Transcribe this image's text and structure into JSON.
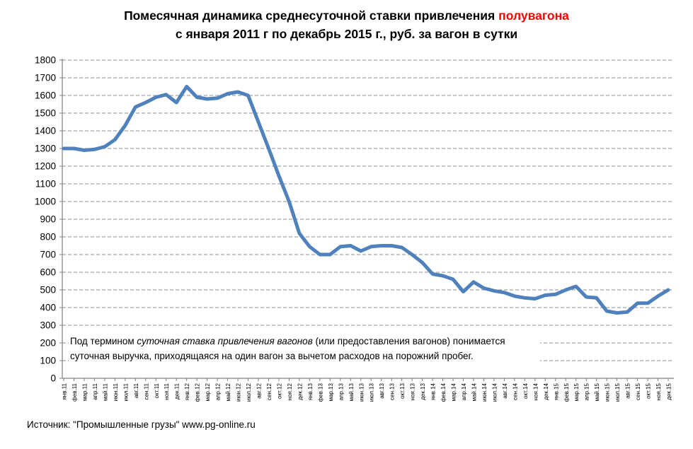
{
  "title": {
    "line1_prefix": "Помесячная динамика среднесуточной ставки привлечения ",
    "line1_highlight": "полувагона",
    "line2": "с января 2011 г по декабрь 2015 г., руб. за вагон в сутки"
  },
  "annotation": {
    "line1_prefix": "Под термином ",
    "line1_italic": "суточная ставка привлечения вагонов",
    "line1_suffix": " (или предоставления вагонов) понимается",
    "line2": "суточная выручка, приходящаяся на один вагон за вычетом расходов на порожний пробег."
  },
  "source": "Источник: \"Промышленные грузы\" www.pg-online.ru",
  "colors": {
    "line": "#4F81BD",
    "grid": "#8C8C8C",
    "axis": "#808080",
    "tick": "#808080",
    "title_highlight": "#FF0000",
    "label_text": "#000000"
  },
  "chart_data": {
    "type": "line",
    "title": "Помесячная динамика среднесуточной ставки привлечения полувагона с января 2011 г по декабрь 2015 г., руб. за вагон в сутки",
    "xlabel": "",
    "ylabel": "руб. за вагон в сутки",
    "ylim": [
      0,
      1800
    ],
    "ytick_step": 100,
    "grid": "horizontal-dashed",
    "legend": "none",
    "x": [
      "янв.11",
      "фев.11",
      "мар.11",
      "апр.11",
      "май.11",
      "июн.11",
      "июл.11",
      "авг.11",
      "сен.11",
      "окт.11",
      "ноя.11",
      "дек.11",
      "янв.12",
      "фев.12",
      "мар.12",
      "апр.12",
      "май.12",
      "июн.12",
      "июл.12",
      "авг.12",
      "сен.12",
      "окт.12",
      "ноя.12",
      "дек.12",
      "янв.13",
      "фев.13",
      "мар.13",
      "апр.13",
      "май.13",
      "июн.13",
      "июл.13",
      "авг.13",
      "сен.13",
      "окт.13",
      "ноя.13",
      "дек.13",
      "янв.14",
      "фев.14",
      "мар.14",
      "апр.14",
      "май.14",
      "июн.14",
      "июл.14",
      "авг.14",
      "сен.14",
      "окт.14",
      "ноя.14",
      "дек.14",
      "янв.15",
      "фев.15",
      "мар.15",
      "апр.15",
      "май.15",
      "июн.15",
      "июл.15",
      "авг.15",
      "сен.15",
      "окт.15",
      "ноя.15",
      "дек.15"
    ],
    "values": [
      1300,
      1300,
      1290,
      1295,
      1310,
      1350,
      1430,
      1535,
      1560,
      1590,
      1605,
      1560,
      1650,
      1590,
      1580,
      1585,
      1610,
      1620,
      1600,
      1450,
      1300,
      1145,
      1000,
      820,
      745,
      700,
      700,
      745,
      750,
      720,
      745,
      750,
      750,
      740,
      700,
      655,
      590,
      580,
      560,
      490,
      545,
      510,
      495,
      485,
      465,
      455,
      450,
      470,
      475,
      500,
      520,
      460,
      455,
      380,
      370,
      375,
      425,
      425,
      465,
      500
    ]
  }
}
